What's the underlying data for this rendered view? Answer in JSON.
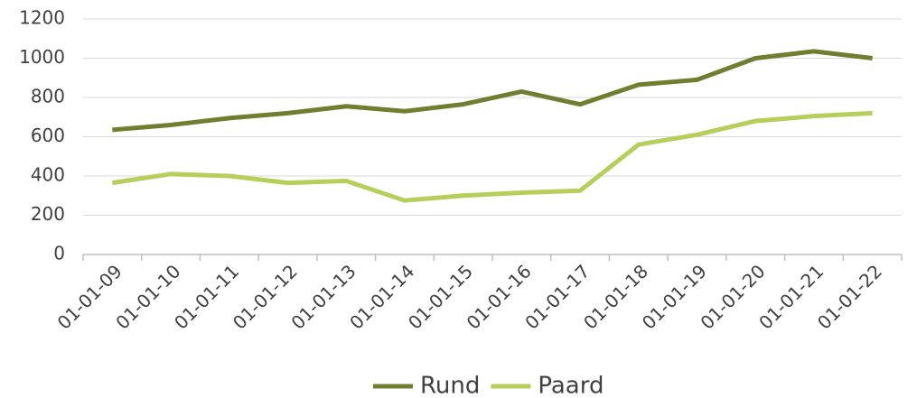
{
  "chart_data": {
    "type": "line",
    "categories": [
      "01-01-09",
      "01-01-10",
      "01-01-11",
      "01-01-12",
      "01-01-13",
      "01-01-14",
      "01-01-15",
      "01-01-16",
      "01-01-17",
      "01-01-18",
      "01-01-19",
      "01-01-20",
      "01-01-21",
      "01-01-22"
    ],
    "series": [
      {
        "name": "Rund",
        "color": "#6f7f2f",
        "values": [
          635,
          660,
          695,
          720,
          755,
          730,
          765,
          830,
          765,
          865,
          890,
          1000,
          1035,
          1000
        ]
      },
      {
        "name": "Paard",
        "color": "#b5cf5a",
        "values": [
          365,
          410,
          400,
          365,
          375,
          275,
          300,
          315,
          325,
          560,
          610,
          680,
          705,
          720
        ]
      }
    ],
    "ylim": [
      0,
      1200
    ],
    "yticks": [
      0,
      200,
      400,
      600,
      800,
      1000,
      1200
    ],
    "grid": true,
    "legend": "bottom"
  }
}
